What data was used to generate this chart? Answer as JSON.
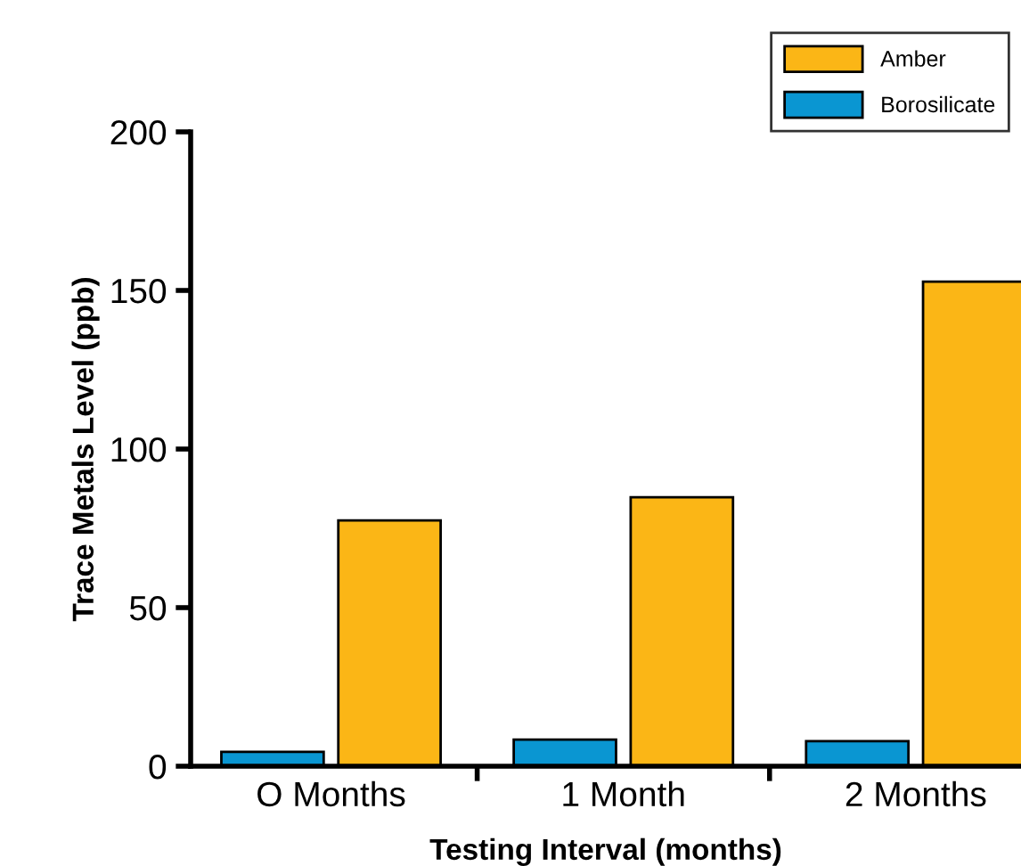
{
  "chart_data": {
    "type": "bar",
    "xlabel": "Testing Interval (months)",
    "ylabel": "Trace Metals Level (ppb)",
    "categories": [
      "O Months",
      "1 Month",
      "2 Months"
    ],
    "series": [
      {
        "name": "Borosilicate",
        "color": "#0a96d2",
        "values": [
          4.5,
          8.4,
          7.9
        ]
      },
      {
        "name": "Amber",
        "color": "#fbb616",
        "values": [
          77.5,
          84.8,
          152.8
        ]
      }
    ],
    "ylim": [
      0,
      200
    ],
    "yticks": [
      0,
      50,
      100,
      150,
      200
    ],
    "grid": false,
    "legend": "top right"
  }
}
